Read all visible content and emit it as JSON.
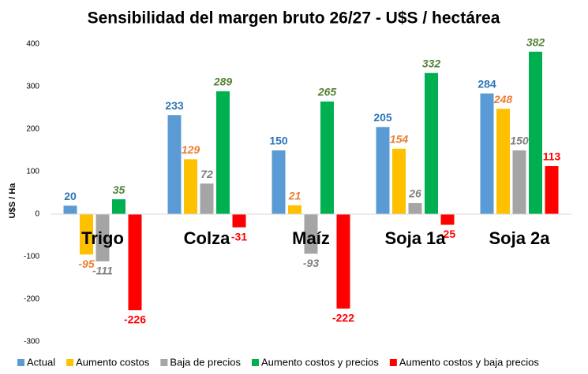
{
  "chart_data": {
    "type": "bar",
    "title": "Sensibilidad del margen bruto 26/27 - U$S / hectárea",
    "y_label": "U$S / Ha",
    "categories": [
      "Trigo",
      "Colza",
      "Maíz",
      "Soja 1a",
      "Soja 2a"
    ],
    "series": [
      {
        "name": "Actual",
        "color": "#5b9bd5",
        "values": [
          20,
          233,
          150,
          205,
          284
        ]
      },
      {
        "name": "Aumento costos",
        "color": "#ffc000",
        "values": [
          -95,
          129,
          21,
          154,
          248
        ]
      },
      {
        "name": "Baja de precios",
        "color": "#a5a5a5",
        "values": [
          -111,
          72,
          -93,
          26,
          150
        ]
      },
      {
        "name": "Aumento costos y precios",
        "color": "#00b050",
        "values": [
          35,
          289,
          265,
          332,
          382
        ]
      },
      {
        "name": "Aumento costos y baja precios",
        "color": "#ff0000",
        "values": [
          -226,
          -31,
          -222,
          -25,
          113
        ]
      }
    ],
    "ylim": [
      -300,
      400
    ],
    "yticks": [
      -300,
      -200,
      -100,
      0,
      100,
      200,
      300,
      400
    ],
    "grid": false
  }
}
